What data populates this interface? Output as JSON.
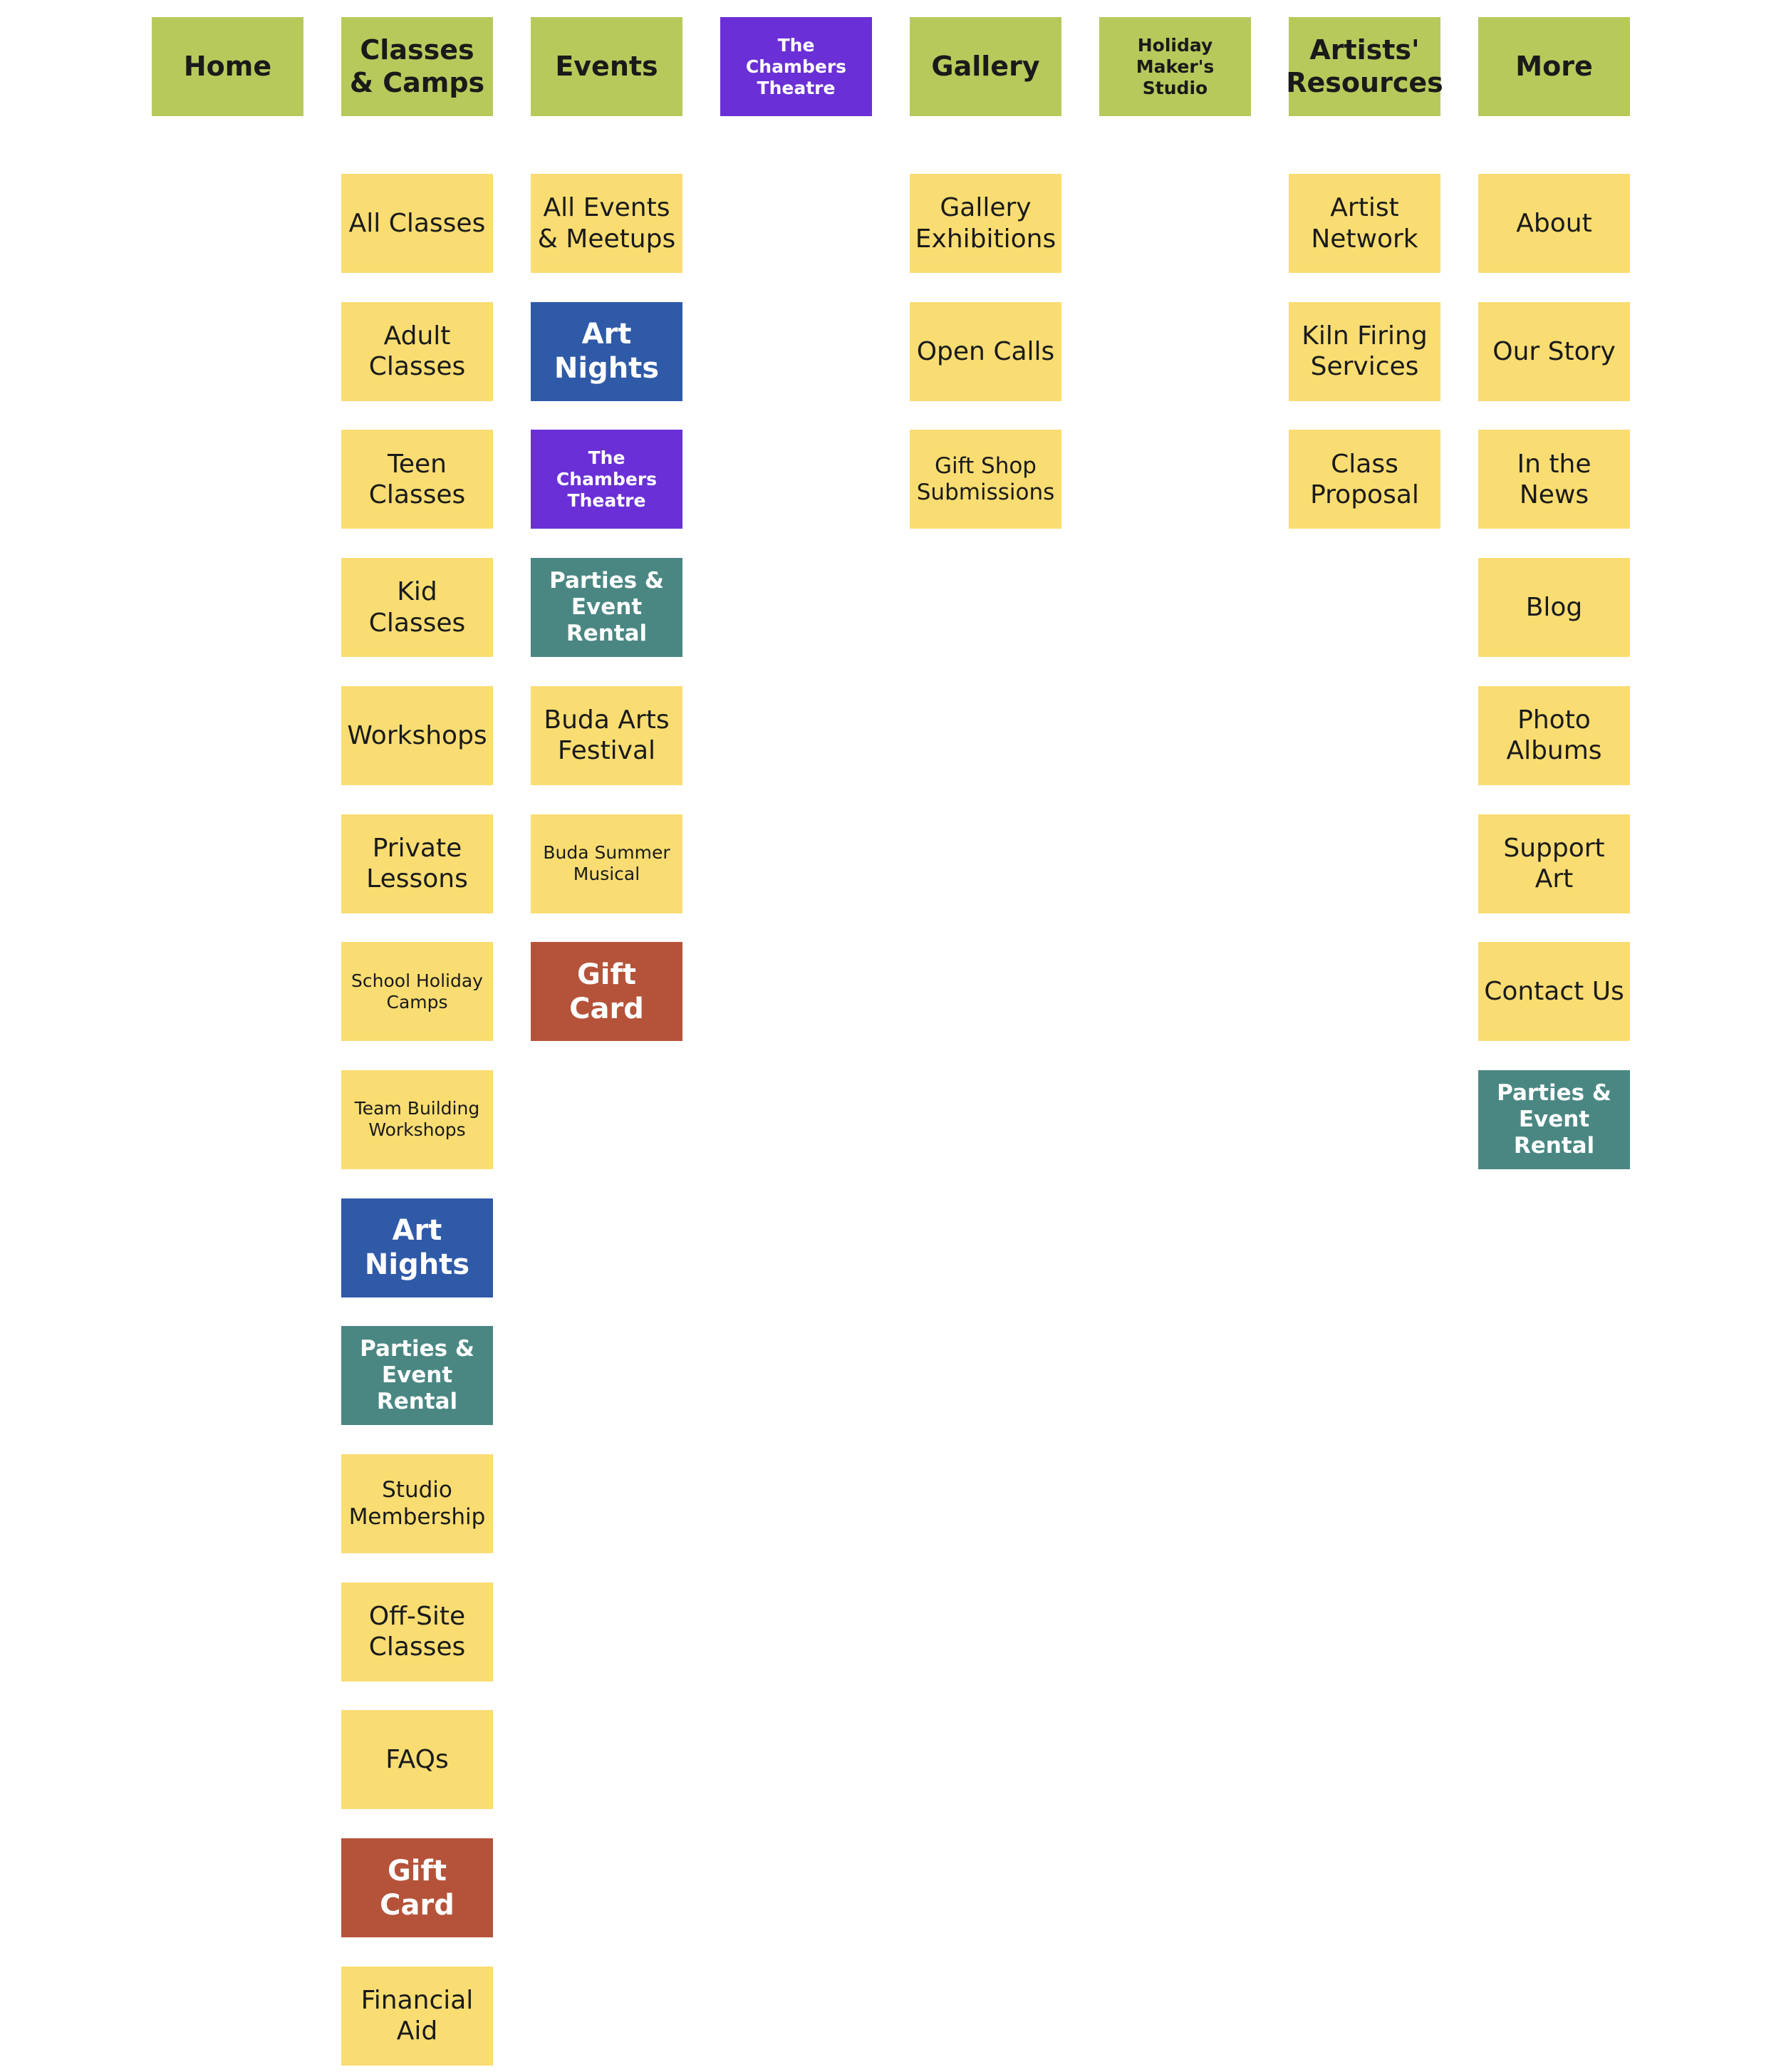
{
  "colors": {
    "green": "#b8c95c",
    "yellow": "#f9dd72",
    "blue": "#2f5aa8",
    "purple": "#6a2fd6",
    "teal": "#4a8782",
    "rust": "#b5533a"
  },
  "columns": [
    {
      "header": {
        "label": "Home",
        "color": "green"
      },
      "items": []
    },
    {
      "header": {
        "label": "Classes & Camps",
        "color": "green"
      },
      "items": [
        {
          "label": "All Classes",
          "color": "yellow"
        },
        {
          "label": "Adult Classes",
          "color": "yellow"
        },
        {
          "label": "Teen Classes",
          "color": "yellow"
        },
        {
          "label": "Kid Classes",
          "color": "yellow"
        },
        {
          "label": "Workshops",
          "color": "yellow"
        },
        {
          "label": "Private Lessons",
          "color": "yellow"
        },
        {
          "label": "School Holiday Camps",
          "color": "yellow"
        },
        {
          "label": "Team Building Workshops",
          "color": "yellow"
        },
        {
          "label": "Art Nights",
          "color": "blue"
        },
        {
          "label": "Parties & Event Rental",
          "color": "teal"
        },
        {
          "label": "Studio Membership",
          "color": "yellow"
        },
        {
          "label": "Off-Site Classes",
          "color": "yellow"
        },
        {
          "label": "FAQs",
          "color": "yellow"
        },
        {
          "label": "Gift Card",
          "color": "rust"
        },
        {
          "label": "Financial Aid",
          "color": "yellow"
        }
      ]
    },
    {
      "header": {
        "label": "Events",
        "color": "green"
      },
      "items": [
        {
          "label": "All Events & Meetups",
          "color": "yellow"
        },
        {
          "label": "Art Nights",
          "color": "blue"
        },
        {
          "label": "The Chambers Theatre",
          "color": "purple"
        },
        {
          "label": "Parties & Event Rental",
          "color": "teal"
        },
        {
          "label": "Buda Arts Festival",
          "color": "yellow"
        },
        {
          "label": "Buda Summer Musical",
          "color": "yellow"
        },
        {
          "label": "Gift Card",
          "color": "rust"
        }
      ]
    },
    {
      "header": {
        "label": "The Chambers Theatre",
        "color": "purple"
      },
      "items": []
    },
    {
      "header": {
        "label": "Gallery",
        "color": "green"
      },
      "items": [
        {
          "label": "Gallery Exhibitions",
          "color": "yellow"
        },
        {
          "label": "Open Calls",
          "color": "yellow"
        },
        {
          "label": "Gift Shop Submissions",
          "color": "yellow"
        }
      ]
    },
    {
      "header": {
        "label": "Holiday Maker's Studio",
        "color": "green"
      },
      "items": []
    },
    {
      "header": {
        "label": "Artists' Resources",
        "color": "green"
      },
      "items": [
        {
          "label": "Artist Network",
          "color": "yellow"
        },
        {
          "label": "Kiln Firing Services",
          "color": "yellow"
        },
        {
          "label": "Class Proposal",
          "color": "yellow"
        }
      ]
    },
    {
      "header": {
        "label": "More",
        "color": "green"
      },
      "items": [
        {
          "label": "About",
          "color": "yellow"
        },
        {
          "label": "Our Story",
          "color": "yellow"
        },
        {
          "label": "In the News",
          "color": "yellow"
        },
        {
          "label": "Blog",
          "color": "yellow"
        },
        {
          "label": "Photo Albums",
          "color": "yellow"
        },
        {
          "label": "Support Art",
          "color": "yellow"
        },
        {
          "label": "Contact Us",
          "color": "yellow"
        },
        {
          "label": "Parties & Event Rental",
          "color": "teal"
        }
      ]
    }
  ]
}
